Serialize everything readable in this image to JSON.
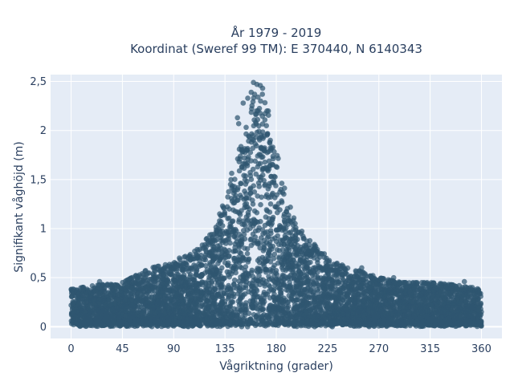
{
  "chart_data": {
    "type": "scatter",
    "title_lines": [
      "År 1979 - 2019",
      "Koordinat (Sweref 99 TM): E 370440, N 6140343"
    ],
    "xlabel": "Vågriktning (grader)",
    "ylabel": "Signifikant våghöjd (m)",
    "xlim": [
      -18,
      378
    ],
    "ylim": [
      -0.12,
      2.57
    ],
    "x_ticks": [
      0,
      45,
      90,
      135,
      180,
      225,
      270,
      315,
      360
    ],
    "x_tick_labels": [
      "0",
      "45",
      "90",
      "135",
      "180",
      "225",
      "270",
      "315",
      "360"
    ],
    "y_ticks": [
      0,
      0.5,
      1,
      1.5,
      2,
      2.5
    ],
    "y_tick_labels": [
      "0",
      "0,5",
      "1",
      "1,5",
      "2",
      "2,5"
    ],
    "grid": true,
    "legend": false,
    "background_color": "#e5ecf6",
    "marker_color": "#2f5670",
    "envelope": {
      "x": [
        0,
        20,
        45,
        70,
        90,
        110,
        125,
        135,
        145,
        155,
        162,
        167,
        172,
        180,
        190,
        200,
        215,
        230,
        250,
        270,
        290,
        315,
        340,
        360
      ],
      "y_max": [
        0.38,
        0.42,
        0.45,
        0.6,
        0.65,
        0.78,
        0.98,
        1.3,
        1.8,
        2.15,
        2.48,
        2.47,
        2.3,
        1.82,
        1.28,
        1.02,
        0.82,
        0.66,
        0.58,
        0.5,
        0.45,
        0.45,
        0.42,
        0.38
      ]
    },
    "outliers": [
      {
        "x": 160,
        "y": 2.49
      },
      {
        "x": 163,
        "y": 2.47
      },
      {
        "x": 166,
        "y": 2.46
      },
      {
        "x": 158,
        "y": 2.39
      },
      {
        "x": 168,
        "y": 2.43
      },
      {
        "x": 155,
        "y": 2.33
      },
      {
        "x": 161,
        "y": 2.37
      },
      {
        "x": 151,
        "y": 2.28
      },
      {
        "x": 164,
        "y": 2.34
      },
      {
        "x": 173,
        "y": 2.2
      },
      {
        "x": 146,
        "y": 2.13
      },
      {
        "x": 147,
        "y": 2.07
      },
      {
        "x": 177,
        "y": 1.83
      },
      {
        "x": 25,
        "y": 0.46
      },
      {
        "x": 73,
        "y": 0.6
      },
      {
        "x": 95,
        "y": 0.7
      },
      {
        "x": 255,
        "y": 0.6
      },
      {
        "x": 283,
        "y": 0.5
      },
      {
        "x": 300,
        "y": 0.45
      },
      {
        "x": 345,
        "y": 0.46
      },
      {
        "x": 352,
        "y": 0.4
      }
    ]
  }
}
